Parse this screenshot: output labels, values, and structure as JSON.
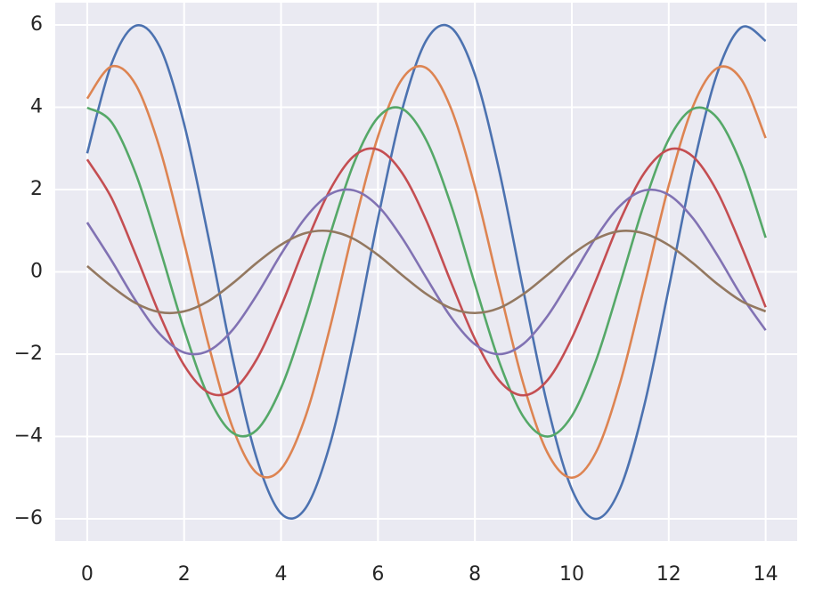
{
  "chart_data": {
    "type": "line",
    "x": [
      0,
      0.5,
      1,
      1.5,
      2,
      2.5,
      3,
      3.5,
      4,
      4.5,
      5,
      5.5,
      6,
      6.5,
      7,
      7.5,
      8,
      8.5,
      9,
      9.5,
      10,
      10.5,
      11,
      11.5,
      12,
      12.5,
      13,
      13.5,
      14
    ],
    "series": [
      {
        "color": "#4c72b0",
        "values": [
          2.88,
          5.05,
          5.98,
          5.46,
          3.59,
          0.85,
          -2.1,
          -4.54,
          -5.87,
          -5.75,
          -4.23,
          -1.68,
          1.29,
          3.94,
          5.63,
          5.94,
          4.79,
          2.47,
          -0.45,
          -3.26,
          -5.28,
          -6.0,
          -5.25,
          -3.22,
          -0.4,
          2.52,
          4.82,
          5.94,
          5.61
        ]
      },
      {
        "color": "#dd8452",
        "values": [
          4.21,
          4.99,
          4.55,
          2.99,
          0.71,
          -1.75,
          -3.78,
          -4.89,
          -4.79,
          -3.53,
          -1.4,
          1.08,
          3.29,
          4.69,
          4.95,
          3.99,
          2.06,
          -0.38,
          -2.72,
          -4.4,
          -5.0,
          -4.38,
          -2.68,
          -0.33,
          2.1,
          4.02,
          4.95,
          4.67,
          3.25
        ]
      },
      {
        "color": "#55a868",
        "values": [
          3.99,
          3.64,
          2.39,
          0.56,
          -1.4,
          -3.03,
          -3.91,
          -3.84,
          -2.82,
          -1.12,
          0.86,
          2.63,
          3.75,
          3.96,
          3.19,
          1.65,
          -0.3,
          -2.18,
          -3.52,
          -4.0,
          -3.5,
          -2.15,
          -0.27,
          1.68,
          3.22,
          3.96,
          3.74,
          2.6,
          0.83
        ]
      },
      {
        "color": "#c44e52",
        "values": [
          2.73,
          1.8,
          0.42,
          -1.05,
          -2.27,
          -2.93,
          -2.88,
          -2.12,
          -0.84,
          0.65,
          1.97,
          2.81,
          2.97,
          2.4,
          1.24,
          -0.23,
          -1.63,
          -2.64,
          -3.0,
          -2.63,
          -1.61,
          -0.2,
          1.26,
          2.41,
          2.97,
          2.8,
          1.95,
          0.62,
          -0.86
        ]
      },
      {
        "color": "#8172b3",
        "values": [
          1.2,
          0.28,
          -0.7,
          -1.51,
          -1.96,
          -1.92,
          -1.41,
          -0.56,
          0.43,
          1.31,
          1.88,
          1.98,
          1.6,
          0.82,
          -0.15,
          -1.09,
          -1.76,
          -2.0,
          -1.75,
          -1.07,
          -0.13,
          0.84,
          1.61,
          1.98,
          1.87,
          1.3,
          0.41,
          -0.58,
          -1.42
        ]
      },
      {
        "color": "#937860",
        "values": [
          0.14,
          -0.35,
          -0.76,
          -0.98,
          -0.96,
          -0.71,
          -0.28,
          0.22,
          0.66,
          0.94,
          0.99,
          0.8,
          0.41,
          -0.08,
          -0.54,
          -0.88,
          -1.0,
          -0.88,
          -0.54,
          -0.07,
          0.42,
          0.8,
          0.99,
          0.93,
          0.65,
          0.21,
          -0.29,
          -0.71,
          -0.96
        ]
      }
    ],
    "xlim": [
      -0.66,
      14.65
    ],
    "ylim": [
      -6.54,
      6.54
    ],
    "xticks": [
      0,
      2,
      4,
      6,
      8,
      10,
      12,
      14
    ],
    "yticks": [
      {
        "value": -6,
        "label": "−6"
      },
      {
        "value": -4,
        "label": "−4"
      },
      {
        "value": -2,
        "label": "−2"
      },
      0,
      2,
      4,
      6
    ],
    "grid": true
  }
}
